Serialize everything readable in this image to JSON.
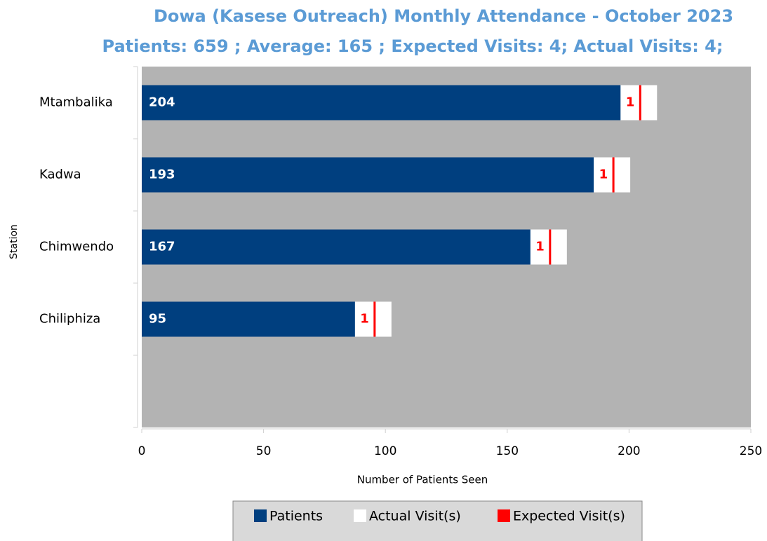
{
  "chart_data": {
    "type": "bar",
    "title": "Dowa (Kasese Outreach)  Monthly Attendance  - October 2023",
    "subtitle": "Patients: 659 ; Average: 165 ;  Expected Visits: 4; Actual Visits: 4;",
    "x_label": "Number of Patients Seen",
    "y_label": "Station",
    "categories": [
      "Mtambalika",
      "Kadwa",
      "Chimwendo",
      "Chiliphiza"
    ],
    "series": [
      {
        "name": "Patients",
        "color": "#003f7f",
        "values": [
          204,
          193,
          167,
          95
        ]
      },
      {
        "name": "Actual Visit(s)",
        "color": "#ffffff",
        "values": [
          1,
          1,
          1,
          1
        ]
      },
      {
        "name": "Expected Visit(s)",
        "color": "#ff0000",
        "values": [
          1,
          1,
          1,
          1
        ]
      }
    ],
    "xlim": [
      0,
      250
    ],
    "xticks": [
      0,
      50,
      100,
      150,
      200,
      250
    ],
    "plot_background": "#b3b3b3",
    "legend": "bottom"
  }
}
